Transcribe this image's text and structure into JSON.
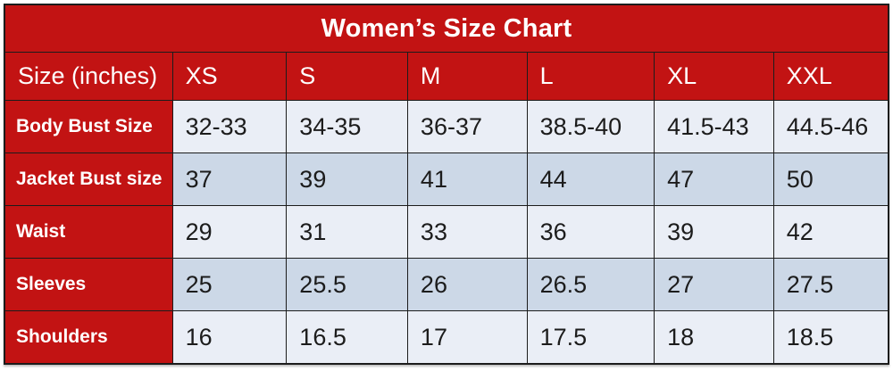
{
  "title": "Women’s Size Chart",
  "colors": {
    "header_red": "#c21313",
    "row_light": "#eaeef6",
    "row_dark": "#ccd8e7",
    "border": "#1c1c1c",
    "title_text": "#ffffff",
    "value_text": "#1c1c1c"
  },
  "chart_data": {
    "type": "table",
    "title": "Women’s Size Chart",
    "columns": [
      "Size (inches)",
      "XS",
      "S",
      "M",
      "L",
      "XL",
      "XXL"
    ],
    "rows": [
      {
        "label": "Body Bust Size",
        "values": [
          "32-33",
          "34-35",
          "36-37",
          "38.5-40",
          "41.5-43",
          "44.5-46"
        ]
      },
      {
        "label": "Jacket Bust size",
        "values": [
          "37",
          "39",
          "41",
          "44",
          "47",
          "50"
        ]
      },
      {
        "label": "Waist",
        "values": [
          "29",
          "31",
          "33",
          "36",
          "39",
          "42"
        ]
      },
      {
        "label": "Sleeves",
        "values": [
          "25",
          "25.5",
          "26",
          "26.5",
          "27",
          "27.5"
        ]
      },
      {
        "label": "Shoulders",
        "values": [
          "16",
          "16.5",
          "17",
          "17.5",
          "18",
          "18.5"
        ]
      }
    ]
  }
}
